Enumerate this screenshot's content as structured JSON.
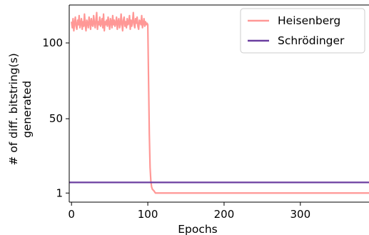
{
  "chart_data": {
    "type": "line",
    "xlabel": "Epochs",
    "ylabel": [
      "# of diff. bitstring(s)",
      "generated"
    ],
    "xlim": [
      -3,
      390
    ],
    "ylim": [
      -5,
      125
    ],
    "xticks": [
      0,
      100,
      200,
      300
    ],
    "yticks": [
      1,
      50,
      100
    ],
    "legend_position": "top-right",
    "series": [
      {
        "name": "Heisenberg",
        "color": "#ff9896",
        "noisy_segment": {
          "x_start": 0,
          "x_end": 100,
          "step": 1,
          "values": [
            114,
            110,
            116,
            108,
            113,
            117,
            111,
            109,
            115,
            112,
            118,
            110,
            113,
            116,
            109,
            114,
            111,
            119,
            112,
            108,
            115,
            113,
            110,
            117,
            114,
            109,
            116,
            112,
            111,
            118,
            113,
            110,
            115,
            120,
            109,
            114,
            112,
            117,
            111,
            113,
            116,
            110,
            119,
            108,
            114,
            112,
            115,
            111,
            117,
            113,
            109,
            116,
            114,
            110,
            118,
            112,
            115,
            111,
            113,
            117,
            109,
            114,
            116,
            110,
            112,
            119,
            113,
            108,
            115,
            117,
            111,
            114,
            110,
            116,
            112,
            113,
            118,
            109,
            115,
            111,
            114,
            120,
            112,
            110,
            116,
            113,
            117,
            111,
            109,
            115,
            114,
            112,
            118,
            110,
            113,
            116,
            111,
            114,
            112,
            113,
            112
          ]
        },
        "tail_points": [
          [
            100,
            112
          ],
          [
            101,
            75
          ],
          [
            102,
            40
          ],
          [
            103,
            18
          ],
          [
            104,
            9
          ],
          [
            105,
            5
          ],
          [
            106,
            3.5
          ],
          [
            108,
            2.5
          ],
          [
            110,
            1
          ],
          [
            390,
            1
          ]
        ]
      },
      {
        "name": "Schrödinger",
        "color": "#6b3fa0",
        "points": [
          [
            -3,
            8
          ],
          [
            390,
            8
          ]
        ]
      }
    ]
  }
}
